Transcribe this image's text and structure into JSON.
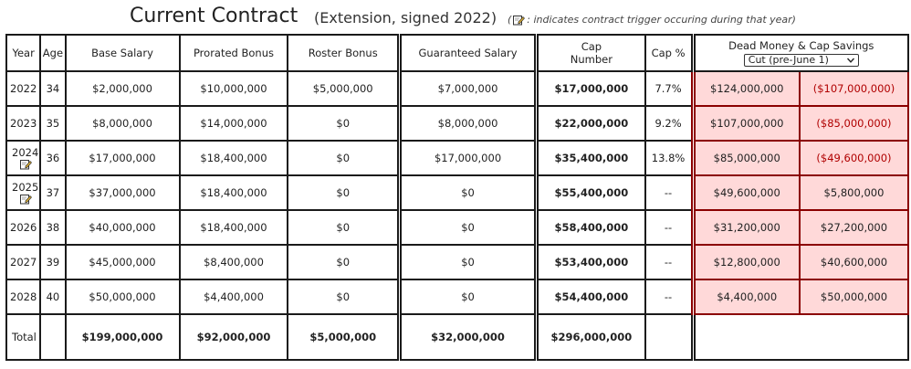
{
  "title": {
    "main": "Current Contract",
    "sub": "(Extension, signed 2022)",
    "note_open": "(",
    "note_text": ": indicates contract trigger occuring during that year)"
  },
  "headers": {
    "year": "Year",
    "age": "Age",
    "base_salary": "Base Salary",
    "prorated_bonus": "Prorated Bonus",
    "roster_bonus": "Roster Bonus",
    "guaranteed_salary": "Guaranteed Salary",
    "cap_number_line1": "Cap",
    "cap_number_line2": "Number",
    "cap_pct": "Cap %",
    "dead_money": "Dead Money & Cap Savings",
    "cut_select": "Cut (pre-June 1)"
  },
  "rows": [
    {
      "year": "2022",
      "age": "34",
      "base": "$2,000,000",
      "prorated": "$10,000,000",
      "roster": "$5,000,000",
      "guaranteed": "$7,000,000",
      "cap": "$17,000,000",
      "pct": "7.7%",
      "dead": "$124,000,000",
      "savings": "($107,000,000)",
      "trigger": false,
      "neg": true
    },
    {
      "year": "2023",
      "age": "35",
      "base": "$8,000,000",
      "prorated": "$14,000,000",
      "roster": "$0",
      "guaranteed": "$8,000,000",
      "cap": "$22,000,000",
      "pct": "9.2%",
      "dead": "$107,000,000",
      "savings": "($85,000,000)",
      "trigger": false,
      "neg": true
    },
    {
      "year": "2024",
      "age": "36",
      "base": "$17,000,000",
      "prorated": "$18,400,000",
      "roster": "$0",
      "guaranteed": "$17,000,000",
      "cap": "$35,400,000",
      "pct": "13.8%",
      "dead": "$85,000,000",
      "savings": "($49,600,000)",
      "trigger": true,
      "neg": true
    },
    {
      "year": "2025",
      "age": "37",
      "base": "$37,000,000",
      "prorated": "$18,400,000",
      "roster": "$0",
      "guaranteed": "$0",
      "cap": "$55,400,000",
      "pct": "--",
      "dead": "$49,600,000",
      "savings": "$5,800,000",
      "trigger": true,
      "neg": false
    },
    {
      "year": "2026",
      "age": "38",
      "base": "$40,000,000",
      "prorated": "$18,400,000",
      "roster": "$0",
      "guaranteed": "$0",
      "cap": "$58,400,000",
      "pct": "--",
      "dead": "$31,200,000",
      "savings": "$27,200,000",
      "trigger": false,
      "neg": false
    },
    {
      "year": "2027",
      "age": "39",
      "base": "$45,000,000",
      "prorated": "$8,400,000",
      "roster": "$0",
      "guaranteed": "$0",
      "cap": "$53,400,000",
      "pct": "--",
      "dead": "$12,800,000",
      "savings": "$40,600,000",
      "trigger": false,
      "neg": false
    },
    {
      "year": "2028",
      "age": "40",
      "base": "$50,000,000",
      "prorated": "$4,400,000",
      "roster": "$0",
      "guaranteed": "$0",
      "cap": "$54,400,000",
      "pct": "--",
      "dead": "$4,400,000",
      "savings": "$50,000,000",
      "trigger": false,
      "neg": false
    }
  ],
  "totals": {
    "label": "Total",
    "base": "$199,000,000",
    "prorated": "$92,000,000",
    "roster": "$5,000,000",
    "guaranteed": "$32,000,000",
    "cap": "$296,000,000"
  },
  "icons": {
    "trigger": "note-pencil-icon",
    "select": "chevron-down-icon"
  },
  "colors": {
    "dead_bg": "#ffd9d9",
    "dead_border": "#8b0000",
    "negative_text": "#b00000"
  }
}
